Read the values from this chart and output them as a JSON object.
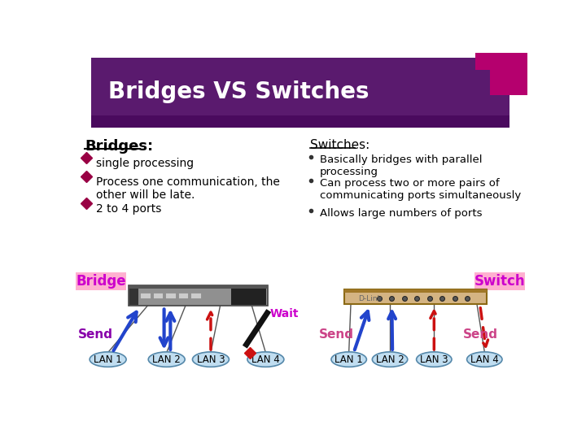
{
  "title": "Bridges VS Switches",
  "title_bg_color": "#5a1a6e",
  "title_text_color": "#ffffff",
  "bg_color": "#ffffff",
  "accent_color": "#b5006e",
  "bridges_header": "Bridges:",
  "switches_header": "Switches:",
  "bridges_bullets": [
    "single processing",
    "Process one communication, the\nother will be late.",
    "2 to 4 ports"
  ],
  "switches_bullets": [
    "Basically bridges with parallel\nprocessing",
    "Can process two or more pairs of\ncommunicating ports simultaneously",
    "Allows large numbers of ports"
  ],
  "bridge_label": "Bridge",
  "switch_label": "Switch",
  "bridge_label_bg": "#ffb0d0",
  "switch_label_bg": "#ffb0d0",
  "bridge_label_text": "#cc00cc",
  "switch_label_text": "#cc00cc",
  "send_color_purple": "#8800aa",
  "send_color_pink": "#cc4488",
  "lan_ellipse_color": "#c0ddf0",
  "lan_border_color": "#5588aa",
  "blue_arrow_color": "#2244cc",
  "red_arrow_color": "#cc1111",
  "wait_text_color": "#cc00cc",
  "bullet_color": "#990044"
}
